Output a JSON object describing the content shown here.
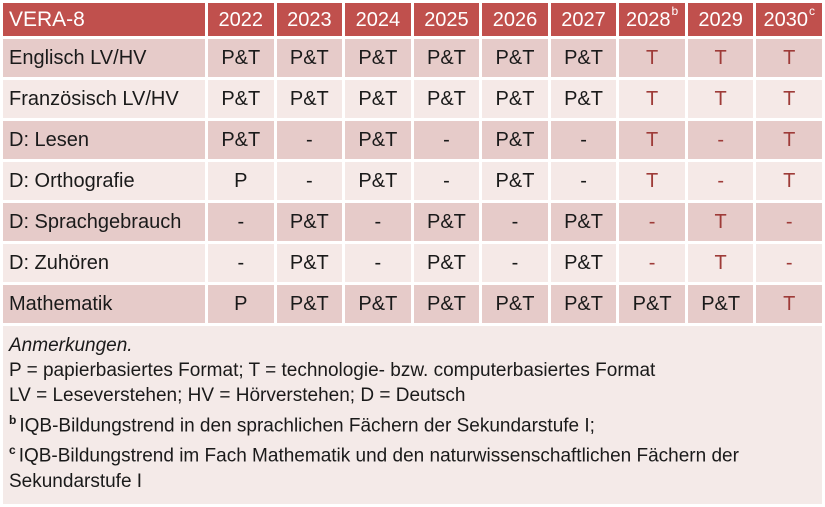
{
  "colors": {
    "header_bg": "#C0504D",
    "header_text": "#FFFFFF",
    "band_dark": "#E6CBC9",
    "band_light": "#F5E9E7",
    "notes_bg": "#F4EAE8",
    "red_text": "#9E3B38",
    "body_text": "#1A1A1A"
  },
  "table": {
    "title": "VERA-8",
    "columns": [
      {
        "label": "2022"
      },
      {
        "label": "2023"
      },
      {
        "label": "2024"
      },
      {
        "label": "2025"
      },
      {
        "label": "2026"
      },
      {
        "label": "2027"
      },
      {
        "label": "2028",
        "sup": "b"
      },
      {
        "label": "2029"
      },
      {
        "label": "2030",
        "sup": "c"
      }
    ],
    "rows": [
      {
        "label": "Englisch LV/HV",
        "band": "dark",
        "cells": [
          {
            "v": "P&T"
          },
          {
            "v": "P&T"
          },
          {
            "v": "P&T"
          },
          {
            "v": "P&T"
          },
          {
            "v": "P&T"
          },
          {
            "v": "P&T"
          },
          {
            "v": "T",
            "red": true
          },
          {
            "v": "T",
            "red": true
          },
          {
            "v": "T",
            "red": true
          }
        ]
      },
      {
        "label": "Französisch LV/HV",
        "band": "light",
        "cells": [
          {
            "v": "P&T"
          },
          {
            "v": "P&T"
          },
          {
            "v": "P&T"
          },
          {
            "v": "P&T"
          },
          {
            "v": "P&T"
          },
          {
            "v": "P&T"
          },
          {
            "v": "T",
            "red": true
          },
          {
            "v": "T",
            "red": true
          },
          {
            "v": "T",
            "red": true
          }
        ]
      },
      {
        "label": "D: Lesen",
        "band": "dark",
        "cells": [
          {
            "v": "P&T"
          },
          {
            "v": "-"
          },
          {
            "v": "P&T"
          },
          {
            "v": "-"
          },
          {
            "v": "P&T"
          },
          {
            "v": "-"
          },
          {
            "v": "T",
            "red": true
          },
          {
            "v": "-",
            "red": true
          },
          {
            "v": "T",
            "red": true
          }
        ]
      },
      {
        "label": "D: Orthografie",
        "band": "light",
        "cells": [
          {
            "v": "P"
          },
          {
            "v": "-"
          },
          {
            "v": "P&T"
          },
          {
            "v": "-"
          },
          {
            "v": "P&T"
          },
          {
            "v": "-"
          },
          {
            "v": "T",
            "red": true
          },
          {
            "v": "-",
            "red": true
          },
          {
            "v": "T",
            "red": true
          }
        ]
      },
      {
        "label": "D: Sprachgebrauch",
        "band": "dark",
        "cells": [
          {
            "v": "-"
          },
          {
            "v": "P&T"
          },
          {
            "v": "-"
          },
          {
            "v": "P&T"
          },
          {
            "v": "-"
          },
          {
            "v": "P&T"
          },
          {
            "v": "-",
            "red": true
          },
          {
            "v": "T",
            "red": true
          },
          {
            "v": "-",
            "red": true
          }
        ]
      },
      {
        "label": "D: Zuhören",
        "band": "light",
        "cells": [
          {
            "v": "-"
          },
          {
            "v": "P&T"
          },
          {
            "v": "-"
          },
          {
            "v": "P&T"
          },
          {
            "v": "-"
          },
          {
            "v": "P&T"
          },
          {
            "v": "-",
            "red": true
          },
          {
            "v": "T",
            "red": true
          },
          {
            "v": "-",
            "red": true
          }
        ]
      },
      {
        "label": "Mathematik",
        "band": "dark",
        "cells": [
          {
            "v": "P"
          },
          {
            "v": "P&T"
          },
          {
            "v": "P&T"
          },
          {
            "v": "P&T"
          },
          {
            "v": "P&T"
          },
          {
            "v": "P&T"
          },
          {
            "v": "P&T"
          },
          {
            "v": "P&T"
          },
          {
            "v": "T",
            "red": true
          }
        ]
      }
    ]
  },
  "notes": {
    "heading": "Anmerkungen.",
    "lines": [
      {
        "text": "P = papierbasiertes Format; T = technologie- bzw. computerbasiertes Format"
      },
      {
        "text": "LV = Leseverstehen; HV = Hörverstehen; D = Deutsch"
      },
      {
        "sup": "b",
        "text": "IQB-Bildungstrend in den sprachlichen Fächern der Sekundarstufe I;"
      },
      {
        "sup": "c",
        "text": "IQB-Bildungstrend im Fach Mathematik und den naturwissenschaftlichen Fächern der Sekundarstufe I"
      }
    ]
  }
}
